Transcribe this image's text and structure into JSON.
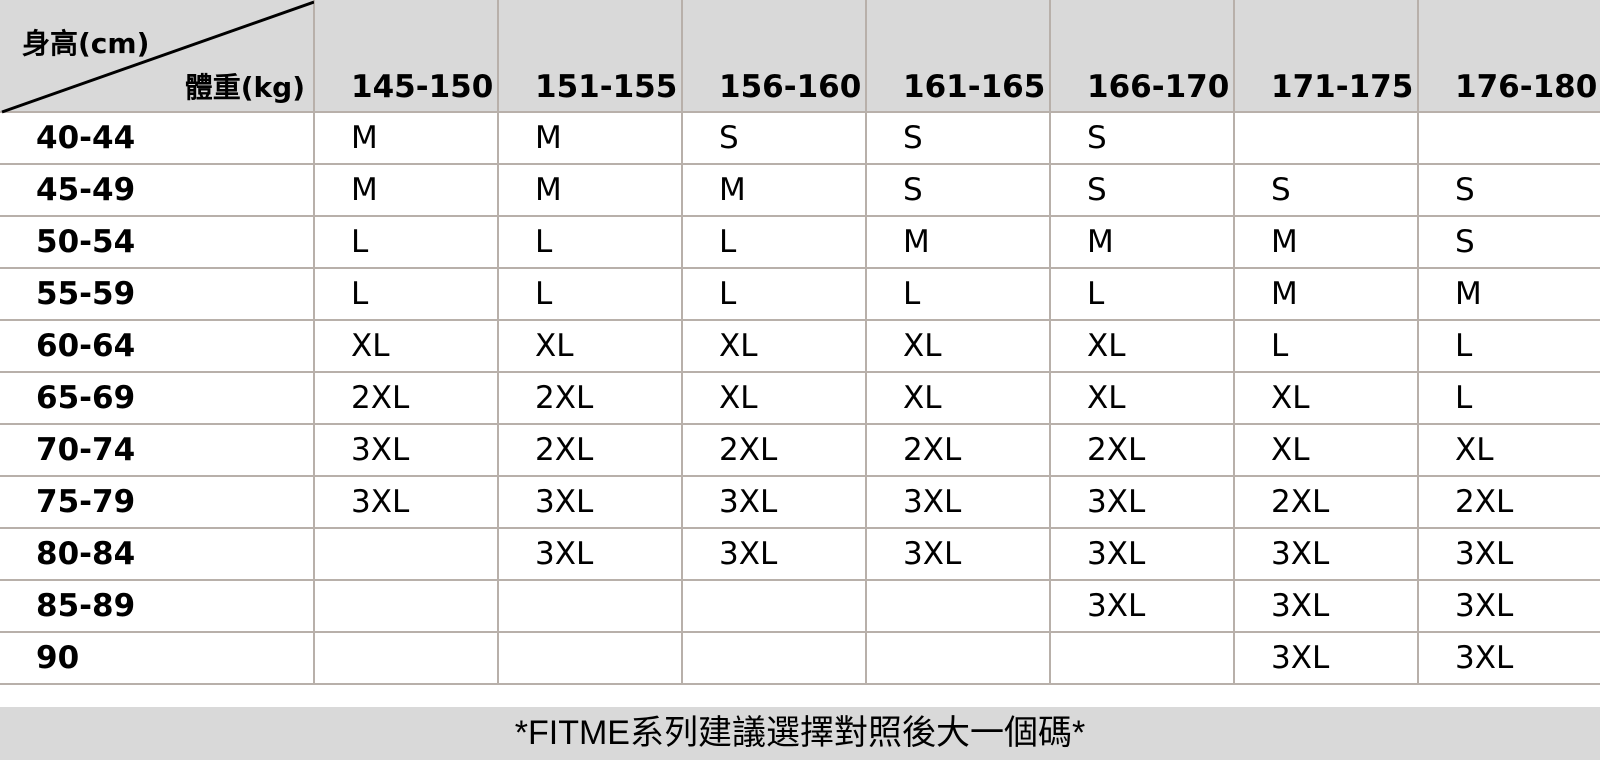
{
  "corner": {
    "height_label": "身高(cm)",
    "weight_label": "體重(kg)"
  },
  "columns": [
    "145-150",
    "151-155",
    "156-160",
    "161-165",
    "166-170",
    "171-175",
    "176-180"
  ],
  "rows": [
    {
      "weight": "40-44",
      "sizes": [
        "M",
        "M",
        "S",
        "S",
        "S",
        "",
        ""
      ]
    },
    {
      "weight": "45-49",
      "sizes": [
        "M",
        "M",
        "M",
        "S",
        "S",
        "S",
        "S"
      ]
    },
    {
      "weight": "50-54",
      "sizes": [
        "L",
        "L",
        "L",
        "M",
        "M",
        "M",
        "S"
      ]
    },
    {
      "weight": "55-59",
      "sizes": [
        "L",
        "L",
        "L",
        "L",
        "L",
        "M",
        "M"
      ]
    },
    {
      "weight": "60-64",
      "sizes": [
        "XL",
        "XL",
        "XL",
        "XL",
        "XL",
        "L",
        "L"
      ]
    },
    {
      "weight": "65-69",
      "sizes": [
        "2XL",
        "2XL",
        "XL",
        "XL",
        "XL",
        "XL",
        "L"
      ]
    },
    {
      "weight": "70-74",
      "sizes": [
        "3XL",
        "2XL",
        "2XL",
        "2XL",
        "2XL",
        "XL",
        "XL"
      ]
    },
    {
      "weight": "75-79",
      "sizes": [
        "3XL",
        "3XL",
        "3XL",
        "3XL",
        "3XL",
        "2XL",
        "2XL"
      ]
    },
    {
      "weight": "80-84",
      "sizes": [
        "",
        "3XL",
        "3XL",
        "3XL",
        "3XL",
        "3XL",
        "3XL"
      ]
    },
    {
      "weight": "85-89",
      "sizes": [
        "",
        "",
        "",
        "",
        "3XL",
        "3XL",
        "3XL"
      ]
    },
    {
      "weight": "90",
      "sizes": [
        "",
        "",
        "",
        "",
        "",
        "3XL",
        "3XL"
      ]
    }
  ],
  "footer": "*FITME系列建議選擇對照後大一個碼*",
  "colors": {
    "header_bg": "#d9d9d9",
    "grid": "#b8b0aa"
  }
}
